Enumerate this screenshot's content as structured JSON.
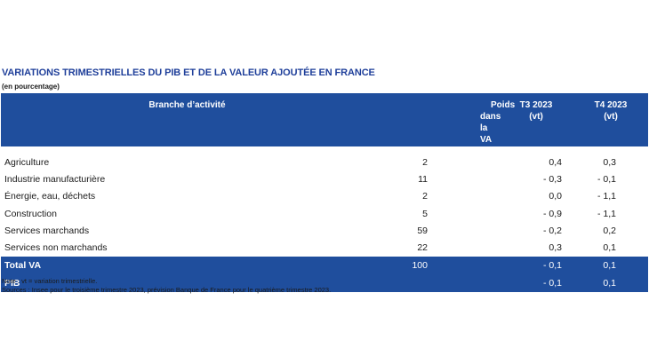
{
  "title": "VARIATIONS TRIMESTRIELLES DU PIB ET DE LA VALEUR AJOUTÉE EN FRANCE",
  "subtitle": "(en pourcentage)",
  "table": {
    "headers": {
      "branche": "Branche d’activité",
      "poids_line1": "Poids",
      "poids_line2": "dans la VA",
      "t3_line1": "T3 2023",
      "t3_line2": "(vt)",
      "t4_line1": "T4 2023",
      "t4_line2": "(vt)"
    },
    "rows": [
      {
        "branche": "Agriculture",
        "poids": "2",
        "t3": "0,4",
        "t4": "0,3"
      },
      {
        "branche": "Industrie manufacturière",
        "poids": "11",
        "t3": "- 0,3",
        "t4": "- 0,1"
      },
      {
        "branche": "Énergie, eau, déchets",
        "poids": "2",
        "t3": "0,0",
        "t4": "- 1,1"
      },
      {
        "branche": "Construction",
        "poids": "5",
        "t3": "- 0,9",
        "t4": "- 1,1"
      },
      {
        "branche": "Services marchands",
        "poids": "59",
        "t3": "- 0,2",
        "t4": "0,2"
      },
      {
        "branche": "Services non marchands",
        "poids": "22",
        "t3": "0,3",
        "t4": "0,1"
      }
    ],
    "total": {
      "branche": "Total VA",
      "poids": "100",
      "t3": "- 0,1",
      "t4": "0,1"
    },
    "pib": {
      "branche": "PIB",
      "poids": "",
      "t3": "- 0,1",
      "t4": "0,1"
    }
  },
  "notes": {
    "note": "Note : vt = variation trimestrielle.",
    "sources": "Sources : Insee pour le troisième trimestre 2023, prévision Banque de France pour le quatrième trimestre 2023."
  },
  "colors": {
    "header_blue": "#1f4e9d",
    "title_blue": "#1f3f9a"
  }
}
